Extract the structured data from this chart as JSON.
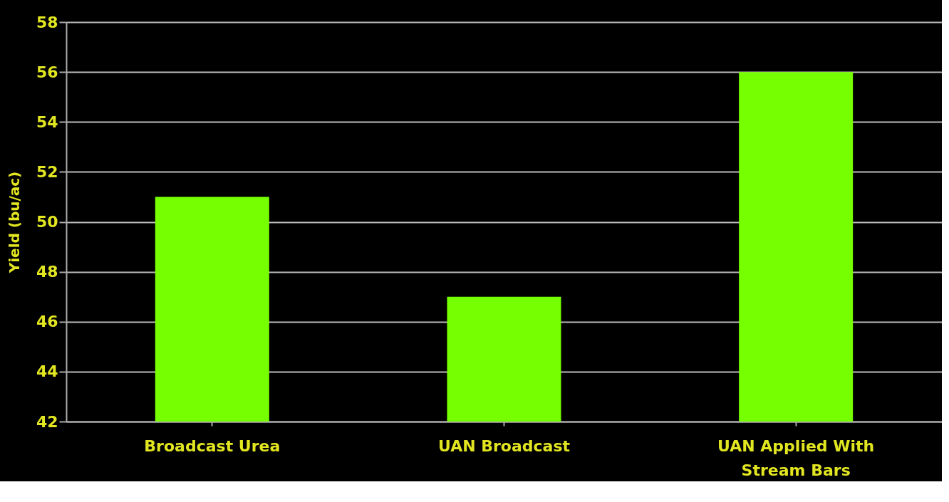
{
  "chart_data": {
    "type": "bar",
    "ylabel": "Yield (bu/ac)",
    "categories": [
      "Broadcast Urea",
      "UAN Broadcast",
      "UAN Applied With\nStream Bars"
    ],
    "values": [
      51,
      47,
      56
    ],
    "color": "#76ff00",
    "ylim": [
      42,
      58
    ],
    "yticks": [
      42,
      44,
      46,
      48,
      50,
      52,
      54,
      56,
      58
    ],
    "grid": "y"
  }
}
